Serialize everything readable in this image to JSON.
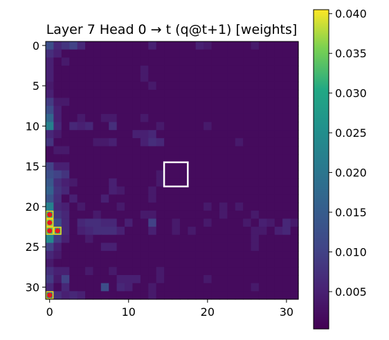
{
  "chart_data": {
    "type": "heatmap",
    "title": "Layer 7 Head 0 → t (q@t+1) [weights]",
    "xlabel": "",
    "ylabel": "",
    "grid": false,
    "colormap": "viridis",
    "colorbar": {
      "location": "right",
      "min": 0.0003,
      "max": 0.0405,
      "ticks": [
        0.005,
        0.01,
        0.015,
        0.02,
        0.025,
        0.03,
        0.035,
        0.04
      ],
      "tick_labels": [
        "0.005",
        "0.010",
        "0.015",
        "0.020",
        "0.025",
        "0.030",
        "0.035",
        "0.040"
      ]
    },
    "x_range": [
      -0.5,
      31.5
    ],
    "y_range": [
      31.5,
      -0.5
    ],
    "x_ticks": [
      0,
      10,
      20,
      30
    ],
    "x_tick_labels": [
      "0",
      "10",
      "20",
      "30"
    ],
    "y_ticks": [
      0,
      5,
      10,
      15,
      20,
      25,
      30
    ],
    "y_tick_labels": [
      "0",
      "5",
      "10",
      "15",
      "20",
      "25",
      "30"
    ],
    "rows": 32,
    "cols": 32,
    "baseline": 0.0018,
    "cells": [
      {
        "r": 0,
        "c": 0,
        "v": 0.012
      },
      {
        "r": 0,
        "c": 1,
        "v": 0.006
      },
      {
        "r": 0,
        "c": 2,
        "v": 0.008
      },
      {
        "r": 0,
        "c": 3,
        "v": 0.01
      },
      {
        "r": 0,
        "c": 4,
        "v": 0.006
      },
      {
        "r": 0,
        "c": 13,
        "v": 0.005
      },
      {
        "r": 0,
        "c": 19,
        "v": 0.005
      },
      {
        "r": 0,
        "c": 20,
        "v": 0.004
      },
      {
        "r": 0,
        "c": 26,
        "v": 0.004
      },
      {
        "r": 1,
        "c": 0,
        "v": 0.007
      },
      {
        "r": 1,
        "c": 1,
        "v": 0.005
      },
      {
        "r": 2,
        "c": 0,
        "v": 0.005
      },
      {
        "r": 2,
        "c": 2,
        "v": 0.004
      },
      {
        "r": 3,
        "c": 0,
        "v": 0.005
      },
      {
        "r": 3,
        "c": 12,
        "v": 0.004
      },
      {
        "r": 4,
        "c": 0,
        "v": 0.005
      },
      {
        "r": 4,
        "c": 12,
        "v": 0.004
      },
      {
        "r": 5,
        "c": 0,
        "v": 0.004
      },
      {
        "r": 5,
        "c": 13,
        "v": 0.004
      },
      {
        "r": 6,
        "c": 0,
        "v": 0.005
      },
      {
        "r": 7,
        "c": 0,
        "v": 0.009
      },
      {
        "r": 7,
        "c": 1,
        "v": 0.004
      },
      {
        "r": 7,
        "c": 2,
        "v": 0.004
      },
      {
        "r": 8,
        "c": 0,
        "v": 0.012
      },
      {
        "r": 8,
        "c": 1,
        "v": 0.005
      },
      {
        "r": 9,
        "c": 0,
        "v": 0.017
      },
      {
        "r": 9,
        "c": 1,
        "v": 0.005
      },
      {
        "r": 9,
        "c": 4,
        "v": 0.004
      },
      {
        "r": 9,
        "c": 7,
        "v": 0.004
      },
      {
        "r": 9,
        "c": 8,
        "v": 0.004
      },
      {
        "r": 9,
        "c": 12,
        "v": 0.004
      },
      {
        "r": 10,
        "c": 0,
        "v": 0.022
      },
      {
        "r": 10,
        "c": 1,
        "v": 0.006
      },
      {
        "r": 10,
        "c": 3,
        "v": 0.006
      },
      {
        "r": 10,
        "c": 4,
        "v": 0.005
      },
      {
        "r": 10,
        "c": 5,
        "v": 0.006
      },
      {
        "r": 10,
        "c": 8,
        "v": 0.007
      },
      {
        "r": 10,
        "c": 14,
        "v": 0.004
      },
      {
        "r": 10,
        "c": 20,
        "v": 0.004
      },
      {
        "r": 11,
        "c": 0,
        "v": 0.006
      },
      {
        "r": 11,
        "c": 1,
        "v": 0.004
      },
      {
        "r": 11,
        "c": 11,
        "v": 0.005
      },
      {
        "r": 11,
        "c": 12,
        "v": 0.005
      },
      {
        "r": 11,
        "c": 13,
        "v": 0.006
      },
      {
        "r": 12,
        "c": 0,
        "v": 0.008
      },
      {
        "r": 12,
        "c": 6,
        "v": 0.004
      },
      {
        "r": 12,
        "c": 7,
        "v": 0.004
      },
      {
        "r": 12,
        "c": 8,
        "v": 0.005
      },
      {
        "r": 12,
        "c": 12,
        "v": 0.005
      },
      {
        "r": 12,
        "c": 13,
        "v": 0.007
      },
      {
        "r": 12,
        "c": 14,
        "v": 0.006
      },
      {
        "r": 12,
        "c": 24,
        "v": 0.004
      },
      {
        "r": 13,
        "c": 1,
        "v": 0.004
      },
      {
        "r": 13,
        "c": 2,
        "v": 0.004
      },
      {
        "r": 15,
        "c": 0,
        "v": 0.01
      },
      {
        "r": 15,
        "c": 1,
        "v": 0.005
      },
      {
        "r": 15,
        "c": 2,
        "v": 0.005
      },
      {
        "r": 16,
        "c": 0,
        "v": 0.012
      },
      {
        "r": 16,
        "c": 1,
        "v": 0.01
      },
      {
        "r": 16,
        "c": 2,
        "v": 0.008
      },
      {
        "r": 16,
        "c": 14,
        "v": 0.004
      },
      {
        "r": 17,
        "c": 0,
        "v": 0.014
      },
      {
        "r": 17,
        "c": 1,
        "v": 0.007
      },
      {
        "r": 17,
        "c": 2,
        "v": 0.005
      },
      {
        "r": 17,
        "c": 3,
        "v": 0.004
      },
      {
        "r": 17,
        "c": 8,
        "v": 0.005
      },
      {
        "r": 17,
        "c": 14,
        "v": 0.004
      },
      {
        "r": 18,
        "c": 0,
        "v": 0.016
      },
      {
        "r": 18,
        "c": 1,
        "v": 0.008
      },
      {
        "r": 18,
        "c": 2,
        "v": 0.006
      },
      {
        "r": 18,
        "c": 8,
        "v": 0.005
      },
      {
        "r": 18,
        "c": 9,
        "v": 0.004
      },
      {
        "r": 18,
        "c": 13,
        "v": 0.004
      },
      {
        "r": 19,
        "c": 0,
        "v": 0.013
      },
      {
        "r": 19,
        "c": 1,
        "v": 0.007
      },
      {
        "r": 19,
        "c": 3,
        "v": 0.005
      },
      {
        "r": 19,
        "c": 7,
        "v": 0.005
      },
      {
        "r": 19,
        "c": 13,
        "v": 0.004
      },
      {
        "r": 20,
        "c": 0,
        "v": 0.022
      },
      {
        "r": 20,
        "c": 1,
        "v": 0.006
      },
      {
        "r": 20,
        "c": 2,
        "v": 0.005
      },
      {
        "r": 20,
        "c": 4,
        "v": 0.004
      },
      {
        "r": 20,
        "c": 9,
        "v": 0.004
      },
      {
        "r": 20,
        "c": 20,
        "v": 0.004
      },
      {
        "r": 20,
        "c": 22,
        "v": 0.004
      },
      {
        "r": 20,
        "c": 24,
        "v": 0.004
      },
      {
        "r": 21,
        "c": 0,
        "v": 0.03
      },
      {
        "r": 21,
        "c": 1,
        "v": 0.008
      },
      {
        "r": 21,
        "c": 2,
        "v": 0.006
      },
      {
        "r": 21,
        "c": 6,
        "v": 0.004
      },
      {
        "r": 21,
        "c": 12,
        "v": 0.004
      },
      {
        "r": 21,
        "c": 13,
        "v": 0.004
      },
      {
        "r": 21,
        "c": 22,
        "v": 0.004
      },
      {
        "r": 21,
        "c": 26,
        "v": 0.004
      },
      {
        "r": 22,
        "c": 0,
        "v": 0.035
      },
      {
        "r": 22,
        "c": 1,
        "v": 0.012
      },
      {
        "r": 22,
        "c": 2,
        "v": 0.006
      },
      {
        "r": 22,
        "c": 4,
        "v": 0.006
      },
      {
        "r": 22,
        "c": 5,
        "v": 0.007
      },
      {
        "r": 22,
        "c": 6,
        "v": 0.007
      },
      {
        "r": 22,
        "c": 7,
        "v": 0.006
      },
      {
        "r": 22,
        "c": 8,
        "v": 0.006
      },
      {
        "r": 22,
        "c": 10,
        "v": 0.005
      },
      {
        "r": 22,
        "c": 13,
        "v": 0.01
      },
      {
        "r": 22,
        "c": 16,
        "v": 0.004
      },
      {
        "r": 22,
        "c": 20,
        "v": 0.004
      },
      {
        "r": 22,
        "c": 25,
        "v": 0.004
      },
      {
        "r": 22,
        "c": 27,
        "v": 0.005
      },
      {
        "r": 22,
        "c": 28,
        "v": 0.004
      },
      {
        "r": 22,
        "c": 30,
        "v": 0.006
      },
      {
        "r": 22,
        "c": 31,
        "v": 0.004
      },
      {
        "r": 23,
        "c": 0,
        "v": 0.032
      },
      {
        "r": 23,
        "c": 1,
        "v": 0.03
      },
      {
        "r": 23,
        "c": 2,
        "v": 0.006
      },
      {
        "r": 23,
        "c": 4,
        "v": 0.005
      },
      {
        "r": 23,
        "c": 5,
        "v": 0.006
      },
      {
        "r": 23,
        "c": 6,
        "v": 0.007
      },
      {
        "r": 23,
        "c": 7,
        "v": 0.007
      },
      {
        "r": 23,
        "c": 8,
        "v": 0.007
      },
      {
        "r": 23,
        "c": 9,
        "v": 0.005
      },
      {
        "r": 23,
        "c": 13,
        "v": 0.005
      },
      {
        "r": 23,
        "c": 16,
        "v": 0.004
      },
      {
        "r": 23,
        "c": 18,
        "v": 0.004
      },
      {
        "r": 23,
        "c": 26,
        "v": 0.004
      },
      {
        "r": 23,
        "c": 27,
        "v": 0.004
      },
      {
        "r": 23,
        "c": 29,
        "v": 0.005
      },
      {
        "r": 23,
        "c": 30,
        "v": 0.006
      },
      {
        "r": 24,
        "c": 0,
        "v": 0.024
      },
      {
        "r": 24,
        "c": 1,
        "v": 0.009
      },
      {
        "r": 24,
        "c": 2,
        "v": 0.005
      },
      {
        "r": 24,
        "c": 5,
        "v": 0.004
      },
      {
        "r": 24,
        "c": 26,
        "v": 0.004
      },
      {
        "r": 25,
        "c": 0,
        "v": 0.01
      },
      {
        "r": 25,
        "c": 1,
        "v": 0.005
      },
      {
        "r": 25,
        "c": 7,
        "v": 0.005
      },
      {
        "r": 25,
        "c": 8,
        "v": 0.005
      },
      {
        "r": 25,
        "c": 26,
        "v": 0.004
      },
      {
        "r": 26,
        "c": 0,
        "v": 0.006
      },
      {
        "r": 26,
        "c": 1,
        "v": 0.004
      },
      {
        "r": 27,
        "c": 0,
        "v": 0.004
      },
      {
        "r": 28,
        "c": 0,
        "v": 0.007
      },
      {
        "r": 28,
        "c": 1,
        "v": 0.005
      },
      {
        "r": 28,
        "c": 2,
        "v": 0.005
      },
      {
        "r": 28,
        "c": 5,
        "v": 0.004
      },
      {
        "r": 28,
        "c": 8,
        "v": 0.004
      },
      {
        "r": 28,
        "c": 14,
        "v": 0.004
      },
      {
        "r": 29,
        "c": 0,
        "v": 0.009
      },
      {
        "r": 29,
        "c": 1,
        "v": 0.004
      },
      {
        "r": 29,
        "c": 2,
        "v": 0.01
      },
      {
        "r": 29,
        "c": 9,
        "v": 0.005
      },
      {
        "r": 29,
        "c": 10,
        "v": 0.005
      },
      {
        "r": 29,
        "c": 11,
        "v": 0.005
      },
      {
        "r": 29,
        "c": 14,
        "v": 0.004
      },
      {
        "r": 29,
        "c": 20,
        "v": 0.004
      },
      {
        "r": 30,
        "c": 0,
        "v": 0.006
      },
      {
        "r": 30,
        "c": 2,
        "v": 0.006
      },
      {
        "r": 30,
        "c": 7,
        "v": 0.012
      },
      {
        "r": 30,
        "c": 9,
        "v": 0.006
      },
      {
        "r": 30,
        "c": 10,
        "v": 0.005
      },
      {
        "r": 30,
        "c": 13,
        "v": 0.004
      },
      {
        "r": 30,
        "c": 26,
        "v": 0.004
      },
      {
        "r": 31,
        "c": 0,
        "v": 0.022
      },
      {
        "r": 31,
        "c": 1,
        "v": 0.007
      },
      {
        "r": 31,
        "c": 2,
        "v": 0.005
      },
      {
        "r": 31,
        "c": 3,
        "v": 0.006
      },
      {
        "r": 31,
        "c": 4,
        "v": 0.005
      },
      {
        "r": 31,
        "c": 13,
        "v": 0.004
      }
    ],
    "highlighted_cells": [
      {
        "r": 21,
        "c": 0
      },
      {
        "r": 22,
        "c": 0
      },
      {
        "r": 23,
        "c": 0
      },
      {
        "r": 23,
        "c": 1
      },
      {
        "r": 31,
        "c": 0
      }
    ],
    "highlight_color": "#e8161d",
    "highlight_border_color": "#f2d41a",
    "query_box": {
      "r0": 14.5,
      "r1": 17.5,
      "c0": 14.5,
      "c1": 17.5,
      "color": "#ffffff"
    }
  }
}
